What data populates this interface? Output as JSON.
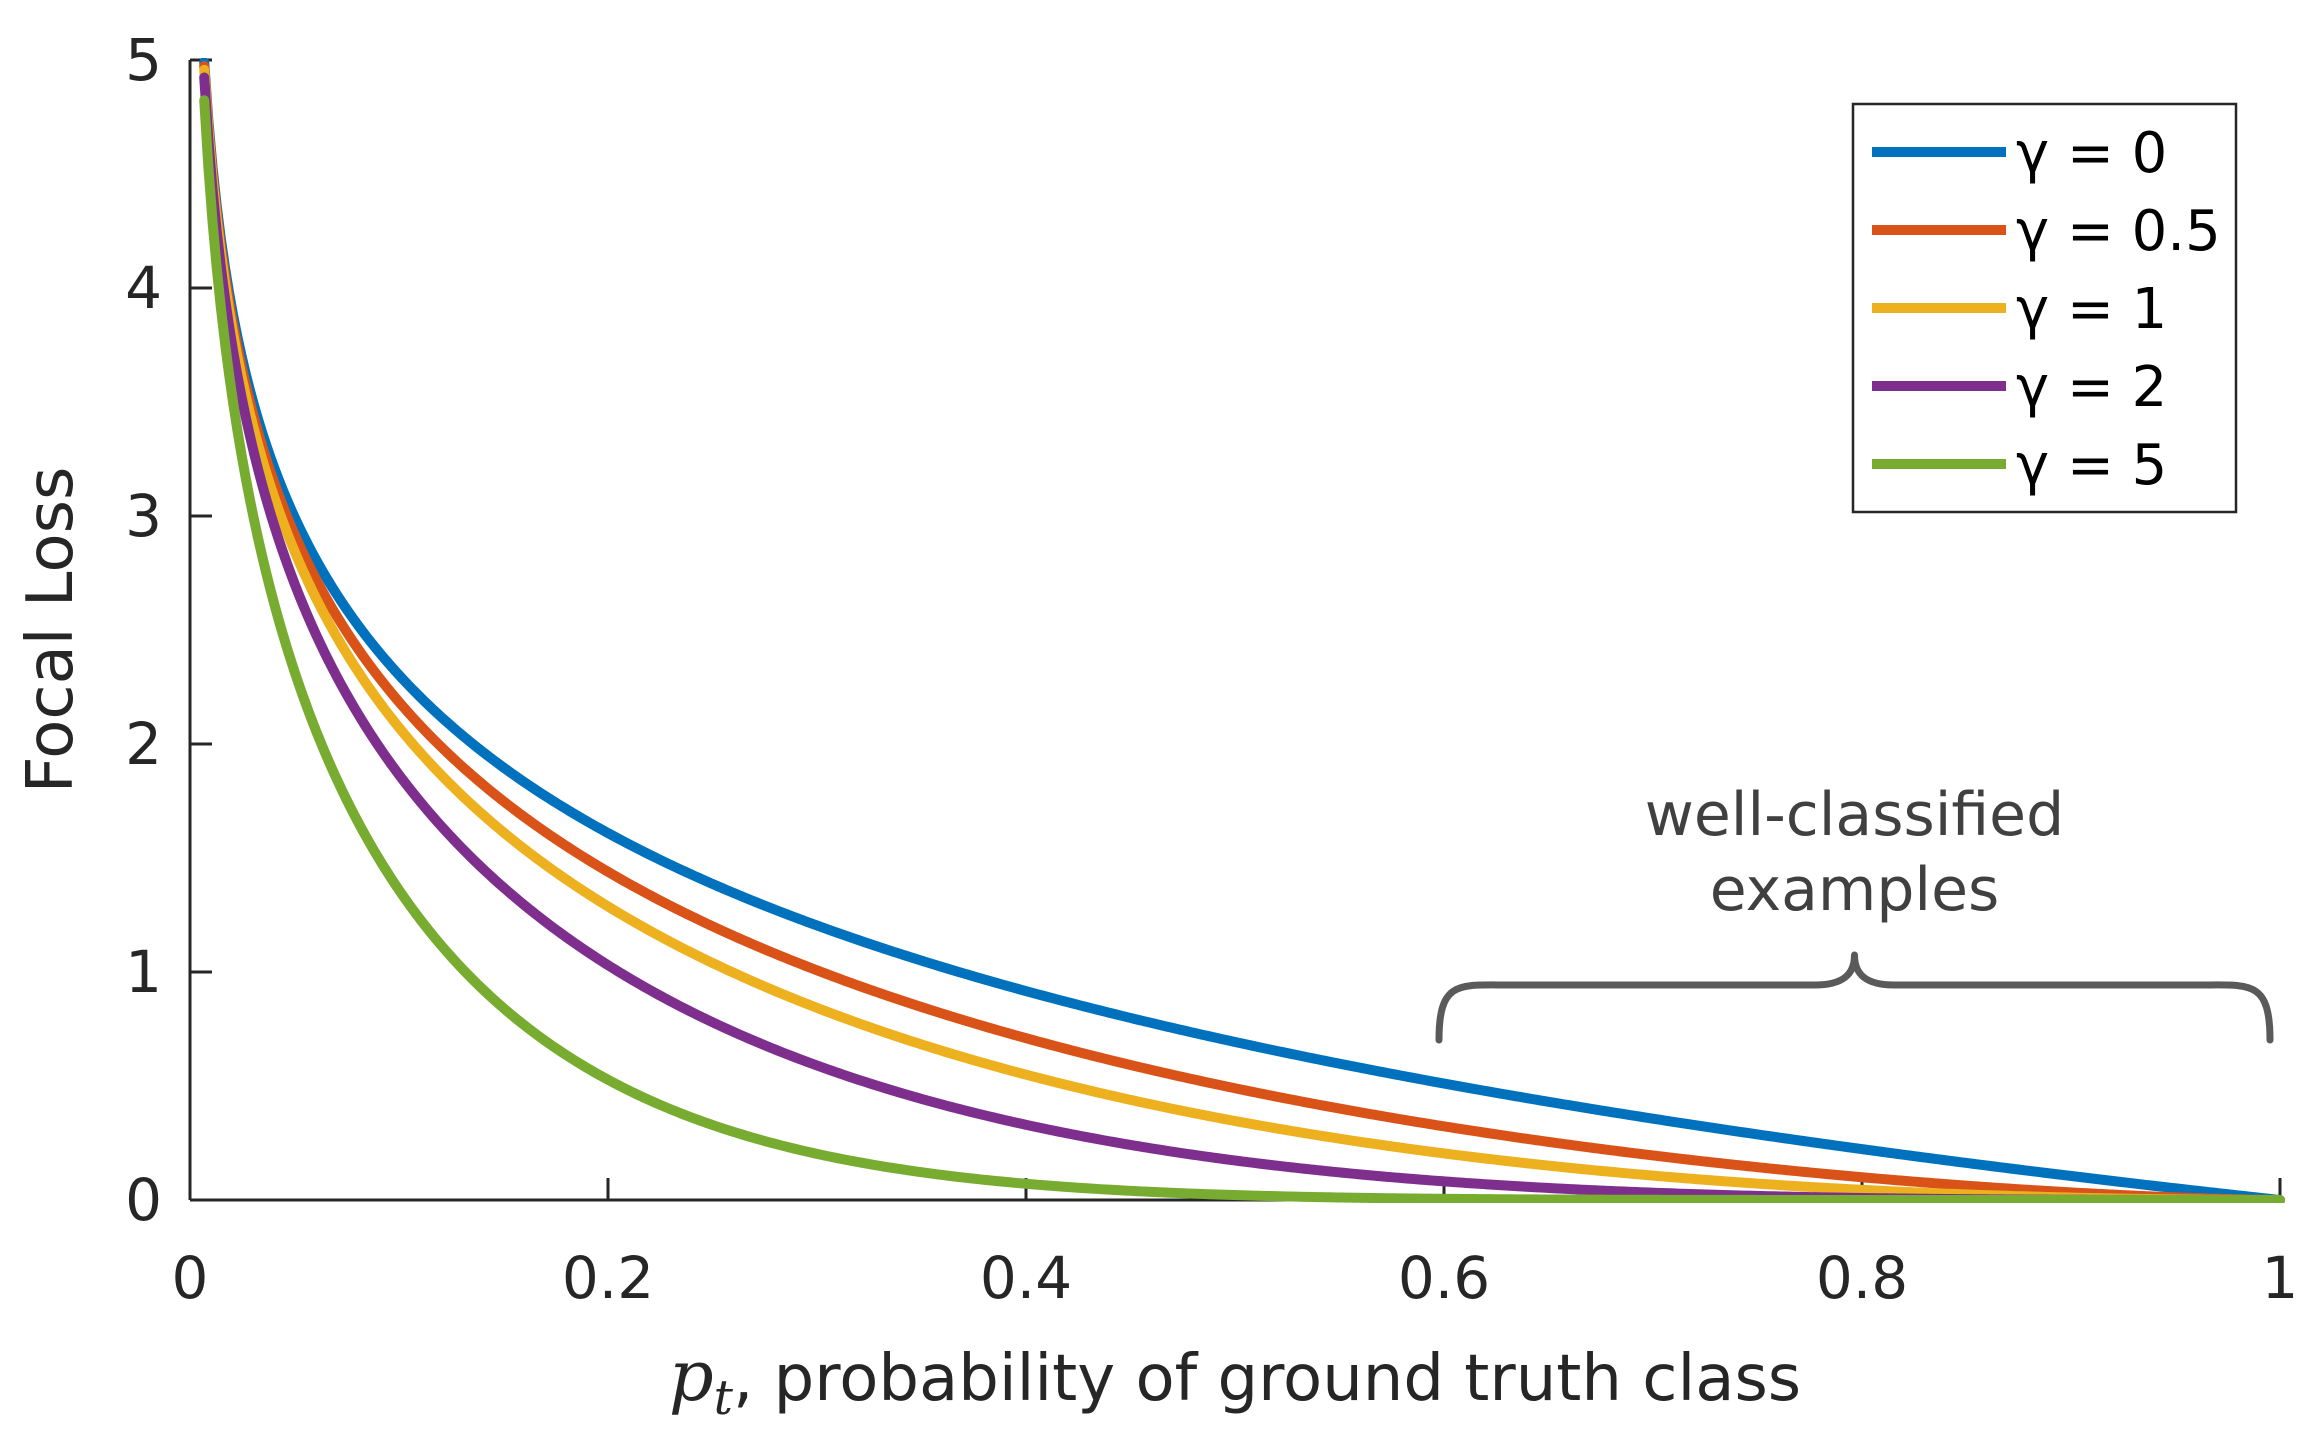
{
  "chart_data": {
    "type": "line",
    "title": "",
    "xlabel": {
      "symbol": "p",
      "subscript": "t",
      "text": ", probability of ground truth class"
    },
    "ylabel": "Focal Loss",
    "xlim": [
      0,
      1
    ],
    "ylim": [
      0,
      5
    ],
    "xticks": [
      "0",
      "0.2",
      "0.4",
      "0.6",
      "0.8",
      "1"
    ],
    "yticks": [
      "0",
      "1",
      "2",
      "3",
      "4",
      "5"
    ],
    "grid": false,
    "legend_position": "top-right",
    "function": "-(1 - p)^gamma * ln(p)",
    "series": [
      {
        "name": "γ = 0",
        "gamma": 0,
        "color": "#0072BD",
        "x": [
          0.01,
          0.05,
          0.1,
          0.2,
          0.3,
          0.4,
          0.5,
          0.6,
          0.7,
          0.8,
          0.9,
          1.0
        ],
        "y": [
          4.61,
          3.0,
          2.3,
          1.61,
          1.2,
          0.92,
          0.69,
          0.51,
          0.36,
          0.22,
          0.11,
          0
        ]
      },
      {
        "name": "γ = 0.5",
        "gamma": 0.5,
        "color": "#D95319",
        "x": [
          0.01,
          0.05,
          0.1,
          0.2,
          0.3,
          0.4,
          0.5,
          0.6,
          0.7,
          0.8,
          0.9,
          1.0
        ],
        "y": [
          4.58,
          2.92,
          2.18,
          1.44,
          1.01,
          0.71,
          0.49,
          0.32,
          0.2,
          0.1,
          0.03,
          0
        ]
      },
      {
        "name": "γ = 1",
        "gamma": 1,
        "color": "#EDB120",
        "x": [
          0.01,
          0.05,
          0.1,
          0.2,
          0.3,
          0.4,
          0.5,
          0.6,
          0.7,
          0.8,
          0.9,
          1.0
        ],
        "y": [
          4.56,
          2.85,
          2.07,
          1.29,
          0.84,
          0.55,
          0.35,
          0.2,
          0.11,
          0.04,
          0.01,
          0
        ]
      },
      {
        "name": "γ = 2",
        "gamma": 2,
        "color": "#7E2F8E",
        "x": [
          0.01,
          0.05,
          0.1,
          0.2,
          0.3,
          0.4,
          0.5,
          0.6,
          0.7,
          0.8,
          0.9,
          1.0
        ],
        "y": [
          4.51,
          2.7,
          1.87,
          1.03,
          0.59,
          0.33,
          0.17,
          0.08,
          0.03,
          0.01,
          0,
          0
        ]
      },
      {
        "name": "γ = 5",
        "gamma": 5,
        "color": "#77AC30",
        "x": [
          0.01,
          0.05,
          0.1,
          0.2,
          0.3,
          0.4,
          0.5,
          0.6,
          0.7,
          0.8,
          0.9,
          1.0
        ],
        "y": [
          4.38,
          2.32,
          1.36,
          0.53,
          0.2,
          0.07,
          0.02,
          0.01,
          0,
          0,
          0,
          0
        ]
      }
    ],
    "annotations": [
      {
        "type": "brace",
        "x_range": [
          0.6,
          1.0
        ],
        "text_lines": [
          "well-classified",
          "examples"
        ],
        "color": "#5a5a5a"
      }
    ]
  }
}
